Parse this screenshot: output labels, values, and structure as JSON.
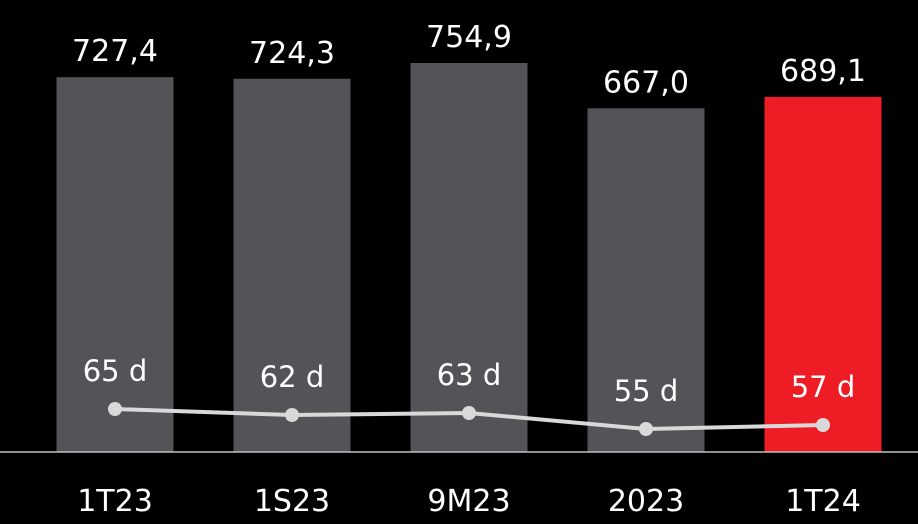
{
  "chart_data": {
    "type": "bar",
    "categories": [
      "1T23",
      "1S23",
      "9M23",
      "2023",
      "1T24"
    ],
    "series": [
      {
        "values": [
          727.4,
          724.3,
          754.9,
          667.0,
          689.1
        ],
        "labels": [
          "727,4",
          "724,3",
          "754,9",
          "667,0",
          "689,1"
        ],
        "colors": [
          "#545458",
          "#545458",
          "#545458",
          "#545458",
          "#ee1c25"
        ]
      },
      {
        "type": "line",
        "values": [
          65,
          62,
          63,
          55,
          57
        ],
        "labels": [
          "65 d",
          "62 d",
          "63 d",
          "55 d",
          "57 d"
        ],
        "color": "#d9d9d9"
      }
    ],
    "title": "",
    "xlabel": "",
    "ylabel": "",
    "ylim": [
      0,
      780
    ],
    "grid": false,
    "legend": "none"
  }
}
